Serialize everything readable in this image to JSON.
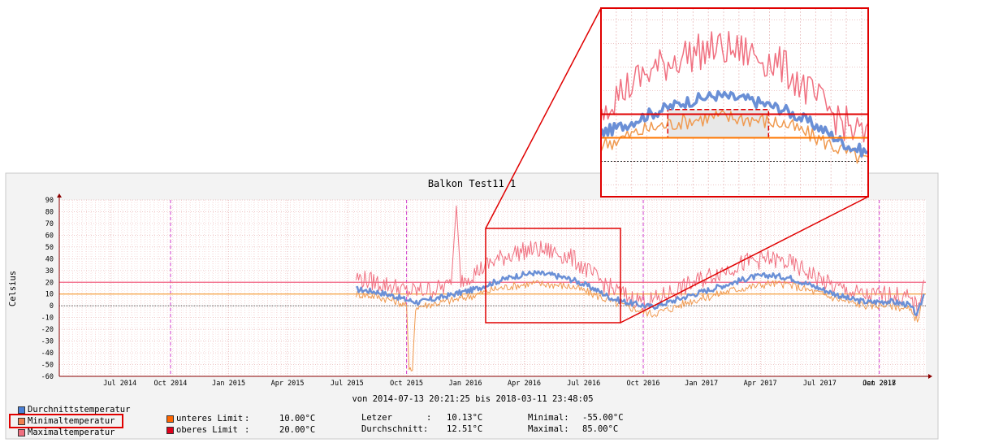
{
  "chart_data": {
    "type": "line",
    "title": "Balkon Test11 1",
    "ylabel": "Celsius",
    "xlabel": "von 2014-07-13 20:21:25 bis 2018-03-11 23:48:05",
    "ylim": [
      -60,
      90
    ],
    "y_ticks": [
      "90",
      "80",
      "70",
      "60",
      "50",
      "40",
      "30",
      "20",
      "10",
      "0",
      "-10",
      "-20",
      "-30",
      "-40",
      "-50",
      "-60"
    ],
    "x_ticks": [
      "Jul 2014",
      "Oct 2014",
      "Jan 2015",
      "Apr 2015",
      "Jul 2015",
      "Oct 2015",
      "Jan 2016",
      "Apr 2016",
      "Jul 2016",
      "Oct 2016",
      "Jan 2017",
      "Apr 2017",
      "Jul 2017",
      "Oct 2017",
      "Jan 2018"
    ],
    "year_marks": [
      "2015-01-01",
      "2016-01-01",
      "2017-01-01",
      "2018-01-01"
    ],
    "limits": {
      "lower": 10,
      "upper": 20
    },
    "series": [
      {
        "name": "Durchnittstemperatur",
        "color": "#6a8fd6",
        "points": [
          [
            "2015-10-15",
            14
          ],
          [
            "2015-11-15",
            12
          ],
          [
            "2015-12-15",
            8
          ],
          [
            "2016-01-01",
            5
          ],
          [
            "2016-01-20",
            3
          ],
          [
            "2016-02-15",
            6
          ],
          [
            "2016-03-15",
            10
          ],
          [
            "2016-04-15",
            14
          ],
          [
            "2016-05-15",
            20
          ],
          [
            "2016-06-15",
            25
          ],
          [
            "2016-07-15",
            28
          ],
          [
            "2016-08-15",
            26
          ],
          [
            "2016-09-15",
            22
          ],
          [
            "2016-10-15",
            15
          ],
          [
            "2016-11-15",
            6
          ],
          [
            "2016-12-15",
            2
          ],
          [
            "2017-01-15",
            -1
          ],
          [
            "2017-02-15",
            4
          ],
          [
            "2017-03-15",
            9
          ],
          [
            "2017-04-15",
            14
          ],
          [
            "2017-05-15",
            19
          ],
          [
            "2017-06-15",
            24
          ],
          [
            "2017-07-15",
            26
          ],
          [
            "2017-08-15",
            24
          ],
          [
            "2017-09-15",
            18
          ],
          [
            "2017-10-15",
            12
          ],
          [
            "2017-11-15",
            6
          ],
          [
            "2017-12-15",
            3
          ],
          [
            "2018-01-15",
            4
          ],
          [
            "2018-02-15",
            1
          ],
          [
            "2018-03-01",
            -8
          ],
          [
            "2018-03-11",
            10
          ]
        ]
      },
      {
        "name": "Minimaltemperatur",
        "color": "#f09a50",
        "points": [
          [
            "2015-10-15",
            10
          ],
          [
            "2015-11-15",
            8
          ],
          [
            "2015-12-15",
            4
          ],
          [
            "2016-01-01",
            0
          ],
          [
            "2016-01-05",
            -55
          ],
          [
            "2016-01-10",
            -55
          ],
          [
            "2016-01-15",
            -1
          ],
          [
            "2016-02-15",
            2
          ],
          [
            "2016-03-15",
            5
          ],
          [
            "2016-04-15",
            9
          ],
          [
            "2016-05-15",
            14
          ],
          [
            "2016-06-15",
            17
          ],
          [
            "2016-07-15",
            19
          ],
          [
            "2016-08-15",
            18
          ],
          [
            "2016-09-15",
            16
          ],
          [
            "2016-10-15",
            10
          ],
          [
            "2016-11-15",
            3
          ],
          [
            "2016-12-15",
            -2
          ],
          [
            "2017-01-15",
            -7
          ],
          [
            "2017-02-15",
            -2
          ],
          [
            "2017-03-15",
            4
          ],
          [
            "2017-04-15",
            8
          ],
          [
            "2017-05-15",
            13
          ],
          [
            "2017-06-15",
            16
          ],
          [
            "2017-07-15",
            19
          ],
          [
            "2017-08-15",
            18
          ],
          [
            "2017-09-15",
            13
          ],
          [
            "2017-10-15",
            8
          ],
          [
            "2017-11-15",
            3
          ],
          [
            "2017-12-15",
            0
          ],
          [
            "2018-01-15",
            1
          ],
          [
            "2018-02-15",
            -3
          ],
          [
            "2018-03-01",
            -12
          ],
          [
            "2018-03-11",
            8
          ]
        ]
      },
      {
        "name": "Maximaltemperatur",
        "color": "#f07080",
        "points": [
          [
            "2015-10-15",
            24
          ],
          [
            "2015-11-15",
            20
          ],
          [
            "2015-12-15",
            16
          ],
          [
            "2016-01-01",
            12
          ],
          [
            "2016-02-15",
            14
          ],
          [
            "2016-03-10",
            18
          ],
          [
            "2016-03-18",
            85
          ],
          [
            "2016-03-25",
            22
          ],
          [
            "2016-04-15",
            28
          ],
          [
            "2016-05-15",
            38
          ],
          [
            "2016-06-15",
            45
          ],
          [
            "2016-07-15",
            48
          ],
          [
            "2016-08-15",
            46
          ],
          [
            "2016-09-15",
            40
          ],
          [
            "2016-10-15",
            26
          ],
          [
            "2016-11-15",
            14
          ],
          [
            "2016-12-15",
            6
          ],
          [
            "2017-01-15",
            4
          ],
          [
            "2017-02-15",
            12
          ],
          [
            "2017-03-15",
            18
          ],
          [
            "2017-04-15",
            26
          ],
          [
            "2017-05-15",
            32
          ],
          [
            "2017-06-15",
            38
          ],
          [
            "2017-07-15",
            40
          ],
          [
            "2017-08-15",
            36
          ],
          [
            "2017-09-15",
            28
          ],
          [
            "2017-10-15",
            18
          ],
          [
            "2017-11-15",
            12
          ],
          [
            "2017-12-15",
            8
          ],
          [
            "2018-01-15",
            10
          ],
          [
            "2018-02-15",
            6
          ],
          [
            "2018-03-01",
            -2
          ],
          [
            "2018-03-11",
            22
          ]
        ]
      }
    ],
    "zoom_inset": {
      "x_from": "2016-04-01",
      "x_to": "2016-12-01",
      "y_from": -15,
      "y_to": 65
    }
  },
  "legend": {
    "series_labels": [
      "Durchnittstemperatur",
      "Minimaltemperatur",
      "Maximaltemperatur"
    ],
    "series_colors": [
      "#4a7fd6",
      "#f08050",
      "#f07080"
    ],
    "limit_lower_label": "unteres Limit",
    "limit_lower_sep": ":",
    "limit_lower_value": "10.00°C",
    "limit_lower_color": "#ff6600",
    "limit_upper_label": "oberes Limit",
    "limit_upper_sep": ":",
    "limit_upper_value": "20.00°C",
    "limit_upper_color": "#e0001b"
  },
  "stats": {
    "last_label": "Letzer",
    "last_sep": ":",
    "last_value": "10.13°C",
    "avg_label": "Durchschnitt:",
    "avg_value": "12.51°C",
    "min_label": "Minimal:",
    "min_value": "-55.00°C",
    "max_label": "Maximal:",
    "max_value": "85.00°C"
  }
}
